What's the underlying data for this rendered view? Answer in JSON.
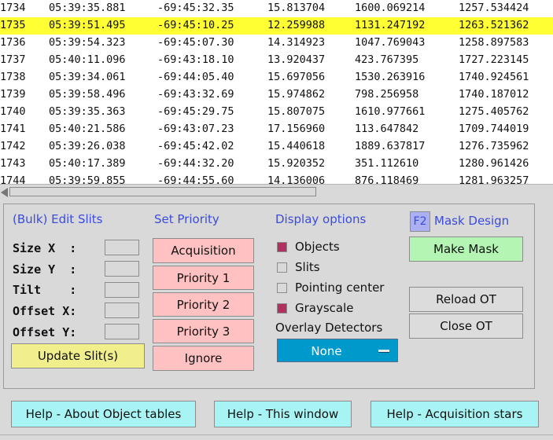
{
  "table": {
    "selected_index": 1,
    "rows": [
      [
        "1734",
        "05:39:35.881",
        "-69:45:32.35",
        "15.813704",
        "1600.069214",
        "1257.534424"
      ],
      [
        "1735",
        "05:39:51.495",
        "-69:45:10.25",
        "12.259988",
        "1131.247192",
        "1263.521362"
      ],
      [
        "1736",
        "05:39:54.323",
        "-69:45:07.30",
        "14.314923",
        "1047.769043",
        "1258.897583"
      ],
      [
        "1737",
        "05:40:11.096",
        "-69:43:18.10",
        "13.920437",
        "423.767395",
        "1727.223145"
      ],
      [
        "1738",
        "05:39:34.061",
        "-69:44:05.40",
        "15.697056",
        "1530.263916",
        "1740.924561"
      ],
      [
        "1739",
        "05:39:58.496",
        "-69:43:32.69",
        "15.974862",
        "798.256958",
        "1740.187012"
      ],
      [
        "1740",
        "05:39:35.363",
        "-69:45:29.75",
        "15.807075",
        "1610.977661",
        "1275.405762"
      ],
      [
        "1741",
        "05:40:21.586",
        "-69:43:07.23",
        "17.156960",
        "113.647842",
        "1709.744019"
      ],
      [
        "1742",
        "05:39:26.038",
        "-69:45:42.02",
        "15.440618",
        "1889.637817",
        "1276.735962"
      ],
      [
        "1743",
        "05:40:17.389",
        "-69:44:32.20",
        "15.920352",
        "351.112610",
        "1280.961426"
      ],
      [
        "1744",
        "05:39:59.855",
        "-69:44:55.60",
        "14.136006",
        "876.118469",
        "1281.963257"
      ]
    ]
  },
  "edit_slits": {
    "title": "(Bulk) Edit Slits",
    "size_x_label": "Size X  :",
    "size_y_label": "Size Y  :",
    "tilt_label": "Tilt    :",
    "offset_x_label": "Offset X:",
    "offset_y_label": "Offset Y:",
    "size_x_value": "",
    "size_y_value": "",
    "tilt_value": "",
    "offset_x_value": "",
    "offset_y_value": "",
    "update_button": "Update Slit(s)"
  },
  "priority": {
    "title": "Set Priority",
    "acquisition": "Acquisition",
    "p1": "Priority 1",
    "p2": "Priority 2",
    "p3": "Priority 3",
    "ignore": "Ignore"
  },
  "display": {
    "title": "Display options",
    "objects": "Objects",
    "slits": "Slits",
    "pointing_center": "Pointing center",
    "grayscale": "Grayscale",
    "objects_checked": true,
    "slits_checked": false,
    "pointing_center_checked": false,
    "grayscale_checked": true,
    "overlay_title": "Overlay Detectors",
    "overlay_value": "None"
  },
  "mask": {
    "f2_label": "F2",
    "title": "Mask Design",
    "make_mask": "Make Mask",
    "reload_ot": "Reload OT",
    "close_ot": "Close OT"
  },
  "help": {
    "about_tables": "Help - About Object tables",
    "this_window": "Help - This window",
    "acq_stars": "Help - Acquisition stars"
  },
  "colors": {
    "selected_row": "#ffff33",
    "header_text": "#3a4be0",
    "priority_button": "#ffc1c1",
    "update_button": "#f0ef8c",
    "make_mask_button": "#b4f5b4",
    "help_button": "#a8f4f4",
    "checkbox_on": "#b03060",
    "overlay_select": "#0099cc"
  }
}
